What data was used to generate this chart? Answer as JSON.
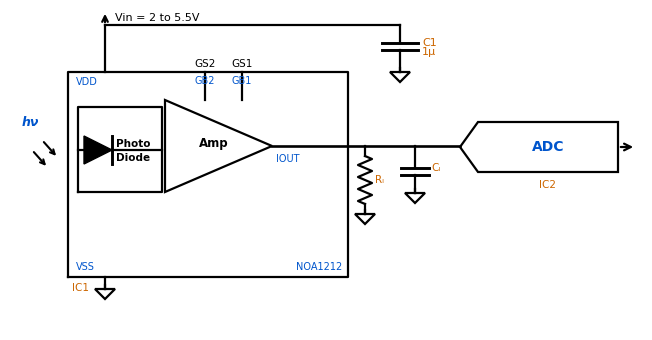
{
  "bg_color": "#ffffff",
  "line_color": "#000000",
  "orange_color": "#cc6600",
  "blue_color": "#0055cc",
  "fig_width": 6.52,
  "fig_height": 3.4,
  "dpi": 100,
  "vin_label": "Vin = 2 to 5.5V",
  "gs2_label": "GS2",
  "gs1_label": "GS1",
  "gb2_label": "GB2",
  "gb1_label": "GB1",
  "vdd_label": "VDD",
  "vss_label": "VSS",
  "noa_label": "NOA1212",
  "ic1_label": "IC1",
  "ic2_label": "IC2",
  "iout_label": "IOUT",
  "c1_label": "C1",
  "c1_val": "1μ",
  "rl_label": "Rₗ",
  "cl_label": "Cₗ",
  "amp_label": "Amp",
  "adc_label": "ADC",
  "photo_label1": "Photo",
  "photo_label2": "Diode",
  "hv_label": "hν"
}
